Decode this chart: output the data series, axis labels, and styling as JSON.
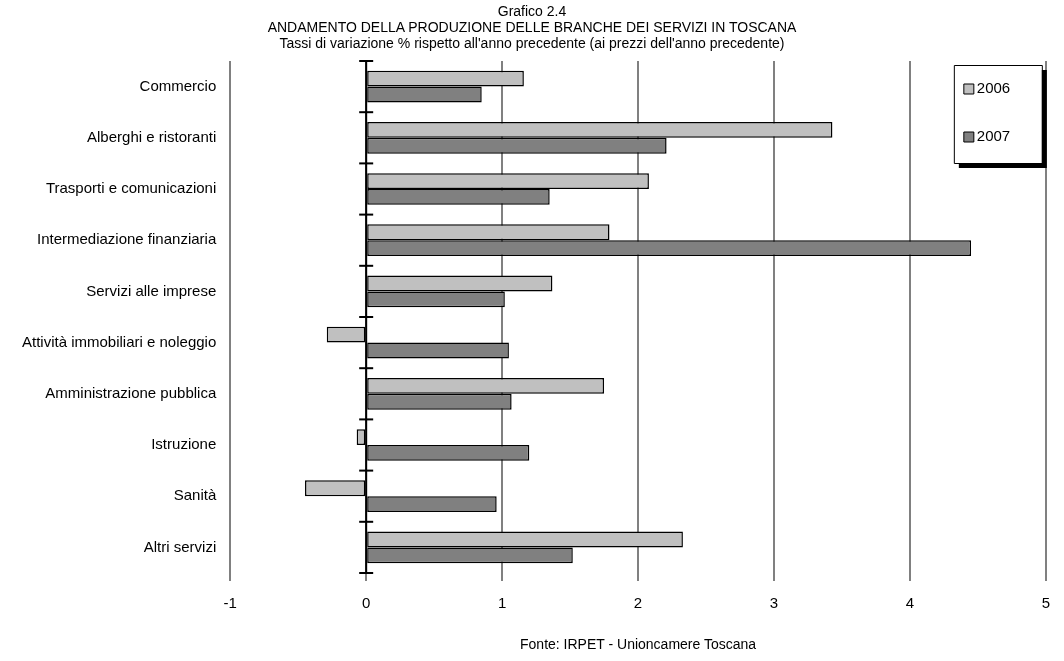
{
  "chart_data": {
    "type": "bar",
    "orientation": "horizontal",
    "title": "Grafico 2.4\nANDAMENTO DELLA PRODUZIONE DELLE BRANCHE DEI SERVIZI IN TOSCANA",
    "subtitle": "Tassi di variazione % rispetto all'anno precedente (ai prezzi dell'anno precedente)",
    "categories": [
      "Commercio",
      "Alberghi e ristoranti",
      "Trasporti e comunicazioni",
      "Intermediazione finanziaria",
      "Servizi alle imprese",
      "Attività immobiliari e noleggio",
      "Amministrazione pubblica",
      "Istruzione",
      "Sanità",
      "Altri servizi"
    ],
    "series": [
      {
        "name": "2006",
        "color": "#c0c0c0",
        "values": [
          1.16,
          3.43,
          2.08,
          1.79,
          1.37,
          -0.29,
          1.75,
          -0.07,
          -0.45,
          2.33
        ]
      },
      {
        "name": "2007",
        "color": "#808080",
        "values": [
          0.85,
          2.21,
          1.35,
          4.45,
          1.02,
          1.05,
          1.07,
          1.2,
          0.96,
          1.52
        ]
      }
    ],
    "xlim": [
      -1,
      5
    ],
    "xticks": [
      -1,
      0,
      1,
      2,
      3,
      4,
      5
    ],
    "grid": "x",
    "legend": "top right",
    "annotations": [
      "Fonte: IRPET - Unioncamere Toscana"
    ]
  }
}
